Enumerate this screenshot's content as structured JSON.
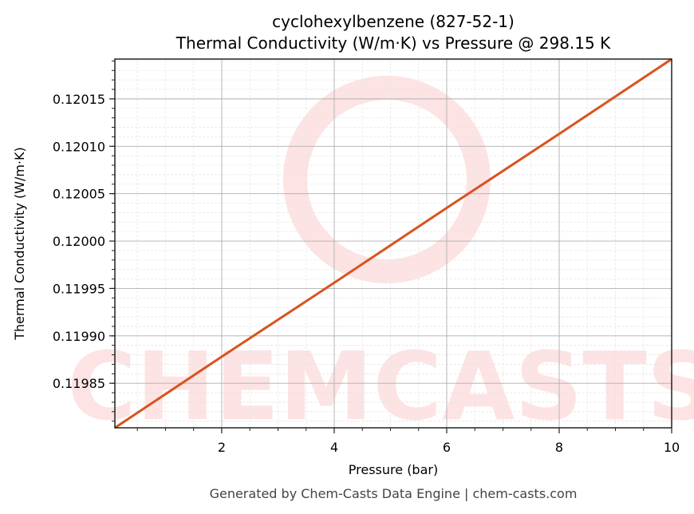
{
  "title": {
    "line1": "cyclohexylbenzene (827-52-1)",
    "line2": "Thermal Conductivity (W/m·K) vs Pressure @ 298.15 K"
  },
  "footer": "Generated by Chem-Casts Data Engine | chem-casts.com",
  "watermark": "CHEMCASTS",
  "colors": {
    "line": "#d9531e",
    "watermark": "#fde3e3",
    "grid_major": "#b0b0b0",
    "grid_minor": "#e6e6e6",
    "axes": "#222222",
    "footer": "#444444"
  },
  "chart_data": {
    "type": "line",
    "title": "cyclohexylbenzene (827-52-1) — Thermal Conductivity (W/m·K) vs Pressure @ 298.15 K",
    "xlabel": "Pressure (bar)",
    "ylabel": "Thermal Conductivity (W/m·K)",
    "xlim": [
      0.1,
      10
    ],
    "ylim": [
      0.119803,
      0.120192
    ],
    "x_ticks": [
      2,
      4,
      6,
      8,
      10
    ],
    "x_tick_labels": [
      "2",
      "4",
      "6",
      "8",
      "10"
    ],
    "y_ticks": [
      0.11985,
      0.1199,
      0.11995,
      0.12,
      0.12005,
      0.1201,
      0.12015
    ],
    "y_tick_labels": [
      "0.11985",
      "0.11990",
      "0.11995",
      "0.12000",
      "0.12005",
      "0.12010",
      "0.12015"
    ],
    "grid": true,
    "legend": null,
    "series": [
      {
        "name": "Thermal Conductivity",
        "x": [
          0.1,
          2,
          4,
          6,
          8,
          10
        ],
        "values": [
          0.119803,
          0.119878,
          0.119956,
          0.120035,
          0.120113,
          0.120192
        ]
      }
    ]
  }
}
